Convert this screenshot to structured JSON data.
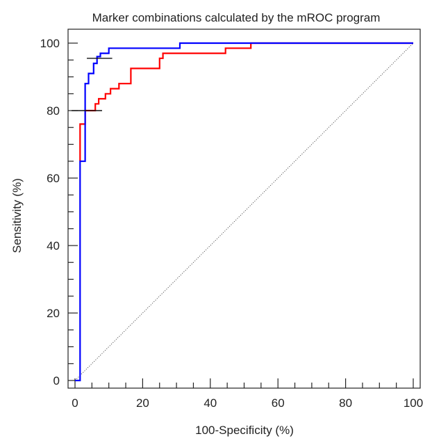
{
  "chart_data": {
    "type": "line",
    "title": "Marker combinations calculated by the mROC program",
    "xlabel": "100-Specificity (%)",
    "ylabel": "Sensitivity (%)",
    "xlim": [
      0,
      100
    ],
    "ylim": [
      0,
      100
    ],
    "xticks": [
      0,
      20,
      40,
      60,
      80,
      100
    ],
    "yticks": [
      0,
      20,
      40,
      60,
      80,
      100
    ],
    "minor_tick_step": 5,
    "grid": false,
    "legend": "none",
    "series": [
      {
        "color": "#0000ff",
        "style": "step",
        "points": [
          [
            0,
            0
          ],
          [
            1.5,
            0
          ],
          [
            1.5,
            65
          ],
          [
            3,
            65
          ],
          [
            3,
            88
          ],
          [
            4,
            88
          ],
          [
            4,
            91
          ],
          [
            5.5,
            91
          ],
          [
            5.5,
            94
          ],
          [
            6.5,
            94
          ],
          [
            6.5,
            96
          ],
          [
            7.5,
            96
          ],
          [
            7.5,
            97
          ],
          [
            10,
            97
          ],
          [
            10,
            98.5
          ],
          [
            31,
            98.5
          ],
          [
            31,
            100
          ],
          [
            100,
            100
          ]
        ]
      },
      {
        "color": "#ff0000",
        "style": "step",
        "points": [
          [
            1.5,
            65
          ],
          [
            1.5,
            76
          ],
          [
            3,
            76
          ],
          [
            3,
            80
          ],
          [
            6,
            80
          ],
          [
            6,
            82
          ],
          [
            7,
            82
          ],
          [
            7,
            83.5
          ],
          [
            9,
            83.5
          ],
          [
            9,
            85
          ],
          [
            10.5,
            85
          ],
          [
            10.5,
            86.5
          ],
          [
            13,
            86.5
          ],
          [
            13,
            88
          ],
          [
            16.5,
            88
          ],
          [
            16.5,
            92.5
          ],
          [
            25,
            92.5
          ],
          [
            25,
            95.5
          ],
          [
            26,
            95.5
          ],
          [
            26,
            97
          ],
          [
            44.5,
            97
          ],
          [
            44.5,
            98.5
          ],
          [
            52,
            98.5
          ],
          [
            52,
            100
          ],
          [
            100,
            100
          ]
        ]
      }
    ],
    "reference_line": {
      "from": [
        0,
        0
      ],
      "to": [
        100,
        100
      ],
      "style": "dotted"
    },
    "cutoff_markers": [
      {
        "x_range": [
          3.5,
          11
        ],
        "y": 95.5
      },
      {
        "x_range": [
          -1,
          8
        ],
        "y": 80
      }
    ]
  }
}
